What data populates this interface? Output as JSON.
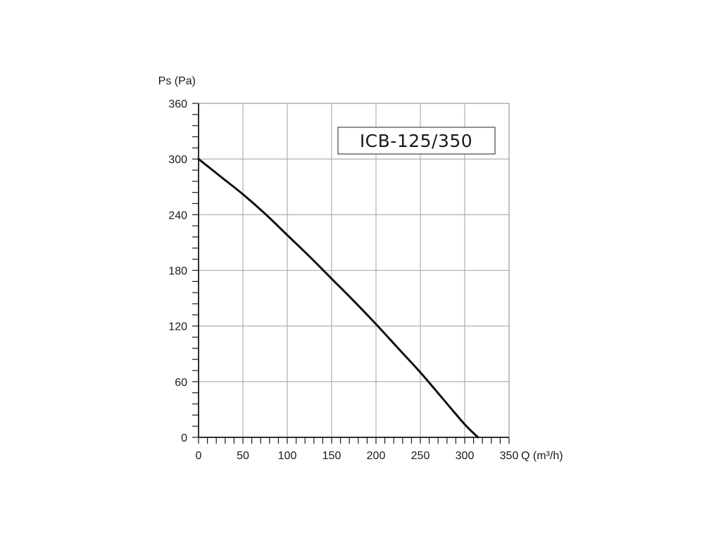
{
  "chart_data": {
    "type": "line",
    "annotation": "ICB-125/350",
    "xlabel": "Q (m³/h)",
    "ylabel": "Ps (Pa)",
    "xlim": [
      0,
      350
    ],
    "ylim": [
      0,
      360
    ],
    "x_ticks": [
      "0",
      "50",
      "100",
      "150",
      "200",
      "250",
      "300",
      "350"
    ],
    "y_ticks": [
      "0",
      "60",
      "120",
      "180",
      "240",
      "300",
      "360"
    ],
    "grid": true,
    "series": [
      {
        "x": [
          0,
          25,
          50,
          75,
          100,
          125,
          150,
          175,
          200,
          225,
          250,
          275,
          300,
          315
        ],
        "y": [
          300,
          281,
          262,
          241,
          218,
          195,
          171,
          147,
          122,
          96,
          70,
          42,
          14,
          0
        ]
      }
    ]
  }
}
